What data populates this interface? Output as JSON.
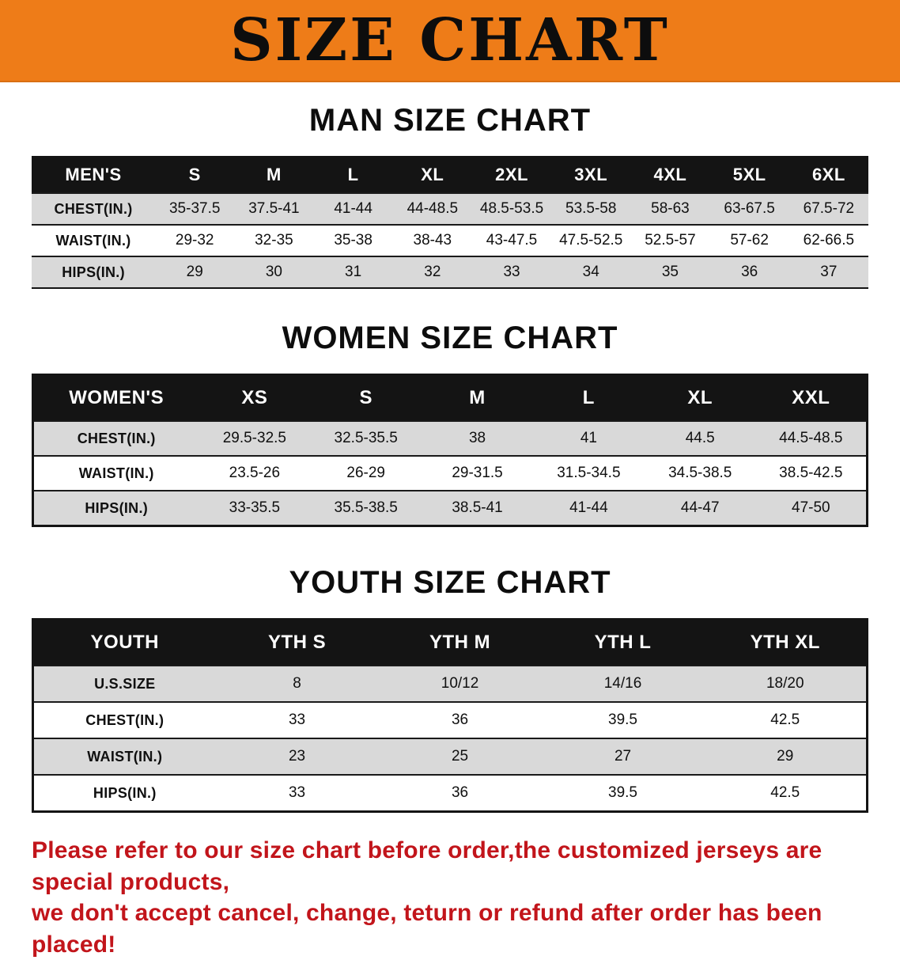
{
  "banner": {
    "title": "SIZE CHART"
  },
  "colors": {
    "banner_bg": "#EE7C18",
    "table_header_bg": "#141414",
    "row_alt_bg": "#D9D9D9",
    "footer_text": "#C2151B"
  },
  "sections": [
    {
      "heading": "MAN SIZE CHART",
      "table": {
        "header": [
          "MEN'S",
          "S",
          "M",
          "L",
          "XL",
          "2XL",
          "3XL",
          "4XL",
          "5XL",
          "6XL"
        ],
        "rows": [
          [
            "CHEST(IN.)",
            "35-37.5",
            "37.5-41",
            "41-44",
            "44-48.5",
            "48.5-53.5",
            "53.5-58",
            "58-63",
            "63-67.5",
            "67.5-72"
          ],
          [
            "WAIST(IN.)",
            "29-32",
            "32-35",
            "35-38",
            "38-43",
            "43-47.5",
            "47.5-52.5",
            "52.5-57",
            "57-62",
            "62-66.5"
          ],
          [
            "HIPS(IN.)",
            "29",
            "30",
            "31",
            "32",
            "33",
            "34",
            "35",
            "36",
            "37"
          ]
        ]
      }
    },
    {
      "heading": "WOMEN SIZE CHART",
      "table": {
        "header": [
          "WOMEN'S",
          "XS",
          "S",
          "M",
          "L",
          "XL",
          "XXL"
        ],
        "rows": [
          [
            "CHEST(IN.)",
            "29.5-32.5",
            "32.5-35.5",
            "38",
            "41",
            "44.5",
            "44.5-48.5"
          ],
          [
            "WAIST(IN.)",
            "23.5-26",
            "26-29",
            "29-31.5",
            "31.5-34.5",
            "34.5-38.5",
            "38.5-42.5"
          ],
          [
            "HIPS(IN.)",
            "33-35.5",
            "35.5-38.5",
            "38.5-41",
            "41-44",
            "44-47",
            "47-50"
          ]
        ]
      }
    },
    {
      "heading": "YOUTH SIZE CHART",
      "table": {
        "header": [
          "YOUTH",
          "YTH S",
          "YTH M",
          "YTH L",
          "YTH XL"
        ],
        "rows": [
          [
            "U.S.SIZE",
            "8",
            "10/12",
            "14/16",
            "18/20"
          ],
          [
            "CHEST(IN.)",
            "33",
            "36",
            "39.5",
            "42.5"
          ],
          [
            "WAIST(IN.)",
            "23",
            "25",
            "27",
            "29"
          ],
          [
            "HIPS(IN.)",
            "33",
            "36",
            "39.5",
            "42.5"
          ]
        ]
      }
    }
  ],
  "footer": {
    "lines": [
      "Please refer to our size chart before order,the customized jerseys are special products,",
      "we don't accept cancel, change, teturn or refund after order has been placed!"
    ]
  }
}
